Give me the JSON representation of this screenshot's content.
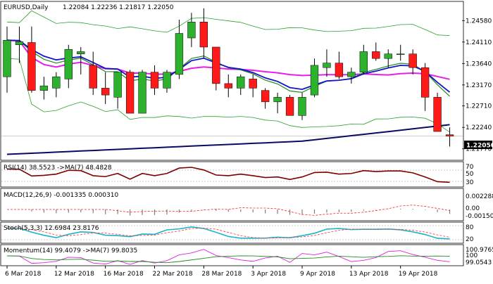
{
  "header": {
    "symbol": "EURUSD,Daily",
    "ohlc": "1.22084 1.22236 1.21817 1.22050"
  },
  "colors": {
    "up": "#2db22d",
    "down": "#ff1a1a",
    "ma_blue": "#1414c8",
    "ma_magenta": "#e61ee6",
    "ma_green": "#1e8c1e",
    "boll": "#2aa02a",
    "ma_navy": "#0a0a64",
    "rsi_line": "#7a0000",
    "macd_signal": "#ff2020",
    "stoch_main": "#1ab4c8",
    "stoch_signal": "#ff3030",
    "mom_main": "#e01ee0",
    "mom_ma": "#1e8c1e",
    "grid": "#c8c8c8"
  },
  "panels": {
    "rsi": {
      "label": "RSI(14) 38.5523 ->MA(7) 48.4828",
      "ticks": [
        "70",
        "50",
        "30"
      ]
    },
    "macd": {
      "label": "MACD(12,26,9) -0.001335 0.000310",
      "ticks": [
        "0.002288",
        "0.00",
        "-0.001507"
      ]
    },
    "stoch": {
      "label": "Stoch(5,3,3) 12.6984 23.8176",
      "ticks": [
        "80",
        "20"
      ]
    },
    "momentum": {
      "label": "Momentum(14) 99.4079 ->MA(7) 99.8035",
      "ticks": [
        "100.9765",
        "100",
        "99.0543"
      ]
    }
  },
  "chart_data": {
    "type": "candlestick",
    "title": "EURUSD,Daily",
    "ylim": [
      1.2155,
      1.2497
    ],
    "y_ticks": [
      "1.24580",
      "1.24110",
      "1.23640",
      "1.23170",
      "1.22710",
      "1.22240",
      "1.21770"
    ],
    "price_tag": "1.22050",
    "x_ticks": [
      "6 Mar 2018",
      "12 Mar 2018",
      "16 Mar 2018",
      "22 Mar 2018",
      "28 Mar 2018",
      "3 Apr 2018",
      "9 Apr 2018",
      "13 Apr 2018",
      "19 Apr 2018"
    ],
    "candles": [
      {
        "o": 1.2335,
        "h": 1.2445,
        "l": 1.23,
        "c": 1.2415
      },
      {
        "o": 1.2405,
        "h": 1.2445,
        "l": 1.2365,
        "c": 1.2412
      },
      {
        "o": 1.241,
        "h": 1.2445,
        "l": 1.23,
        "c": 1.2305
      },
      {
        "o": 1.2305,
        "h": 1.2335,
        "l": 1.2285,
        "c": 1.2315
      },
      {
        "o": 1.231,
        "h": 1.2345,
        "l": 1.229,
        "c": 1.2335
      },
      {
        "o": 1.233,
        "h": 1.2405,
        "l": 1.231,
        "c": 1.2395
      },
      {
        "o": 1.2385,
        "h": 1.24,
        "l": 1.234,
        "c": 1.239
      },
      {
        "o": 1.236,
        "h": 1.239,
        "l": 1.2295,
        "c": 1.231
      },
      {
        "o": 1.231,
        "h": 1.2345,
        "l": 1.2275,
        "c": 1.2295
      },
      {
        "o": 1.229,
        "h": 1.2345,
        "l": 1.2265,
        "c": 1.2345
      },
      {
        "o": 1.2345,
        "h": 1.235,
        "l": 1.2255,
        "c": 1.2255
      },
      {
        "o": 1.2255,
        "h": 1.235,
        "l": 1.2255,
        "c": 1.2345
      },
      {
        "o": 1.2345,
        "h": 1.236,
        "l": 1.2295,
        "c": 1.231
      },
      {
        "o": 1.231,
        "h": 1.235,
        "l": 1.23,
        "c": 1.2345
      },
      {
        "o": 1.234,
        "h": 1.246,
        "l": 1.233,
        "c": 1.243
      },
      {
        "o": 1.242,
        "h": 1.2475,
        "l": 1.24,
        "c": 1.2455
      },
      {
        "o": 1.2455,
        "h": 1.2485,
        "l": 1.2375,
        "c": 1.24
      },
      {
        "o": 1.24,
        "h": 1.24,
        "l": 1.2305,
        "c": 1.232
      },
      {
        "o": 1.232,
        "h": 1.234,
        "l": 1.229,
        "c": 1.231
      },
      {
        "o": 1.231,
        "h": 1.234,
        "l": 1.2295,
        "c": 1.2335
      },
      {
        "o": 1.233,
        "h": 1.234,
        "l": 1.229,
        "c": 1.231
      },
      {
        "o": 1.2305,
        "h": 1.231,
        "l": 1.2265,
        "c": 1.228
      },
      {
        "o": 1.228,
        "h": 1.23,
        "l": 1.2255,
        "c": 1.229
      },
      {
        "o": 1.229,
        "h": 1.2295,
        "l": 1.225,
        "c": 1.225
      },
      {
        "o": 1.225,
        "h": 1.23,
        "l": 1.224,
        "c": 1.229
      },
      {
        "o": 1.2295,
        "h": 1.2375,
        "l": 1.229,
        "c": 1.236
      },
      {
        "o": 1.2355,
        "h": 1.2395,
        "l": 1.2335,
        "c": 1.2365
      },
      {
        "o": 1.2365,
        "h": 1.239,
        "l": 1.233,
        "c": 1.2335
      },
      {
        "o": 1.2335,
        "h": 1.2355,
        "l": 1.232,
        "c": 1.2345
      },
      {
        "o": 1.2345,
        "h": 1.2405,
        "l": 1.234,
        "c": 1.239
      },
      {
        "o": 1.239,
        "h": 1.241,
        "l": 1.237,
        "c": 1.2375
      },
      {
        "o": 1.2375,
        "h": 1.2395,
        "l": 1.2355,
        "c": 1.2385
      },
      {
        "o": 1.2385,
        "h": 1.2405,
        "l": 1.237,
        "c": 1.2385
      },
      {
        "o": 1.2385,
        "h": 1.2395,
        "l": 1.234,
        "c": 1.2355
      },
      {
        "o": 1.2355,
        "h": 1.2365,
        "l": 1.226,
        "c": 1.229
      },
      {
        "o": 1.229,
        "h": 1.23,
        "l": 1.2215,
        "c": 1.2215
      },
      {
        "o": 1.2208,
        "h": 1.2224,
        "l": 1.2182,
        "c": 1.2205
      }
    ],
    "x_tick_candle_index": [
      0,
      4,
      8,
      12,
      16,
      20,
      24,
      28,
      32
    ]
  }
}
